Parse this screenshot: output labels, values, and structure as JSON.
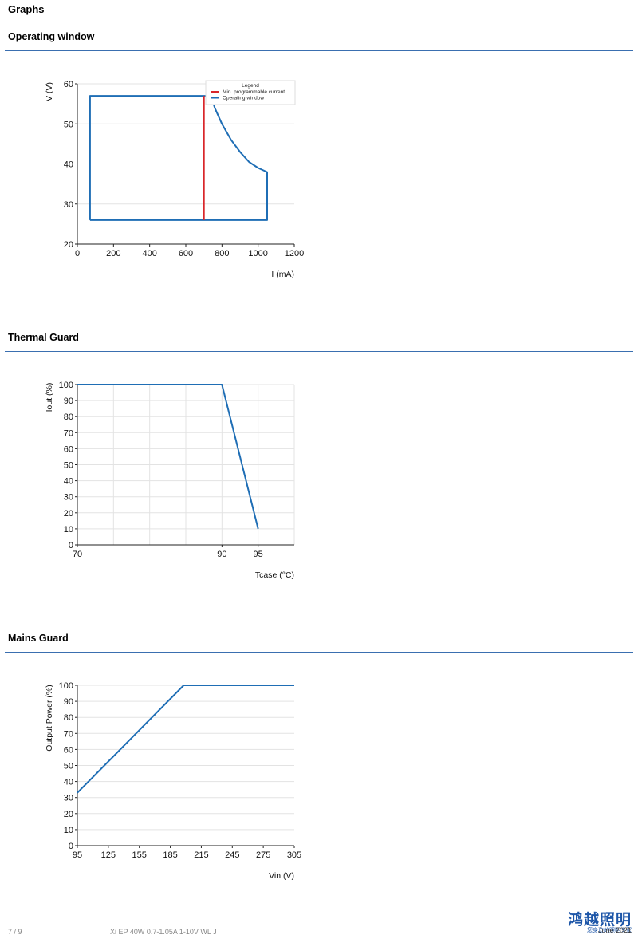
{
  "page": {
    "heading": "Graphs",
    "footer": {
      "page_number": "7 / 9",
      "product": "Xi EP 40W 0.7-1.05A 1-10V WL J",
      "date": "June 2021",
      "brand_name": "鸿越照明",
      "brand_sub": "您身边的照明专家"
    }
  },
  "colors": {
    "accent": "#3a6fb0",
    "series_blue": "#1f6eb5",
    "series_red": "#d9262a",
    "grid": "#e3e3e3"
  },
  "chart_data": [
    {
      "type": "line",
      "section_title": "Operating window",
      "xlabel": "I (mA)",
      "ylabel": "V (V)",
      "xlim": [
        0,
        1200
      ],
      "ylim": [
        20,
        60
      ],
      "xticks": [
        0,
        200,
        400,
        600,
        800,
        1000,
        1200
      ],
      "yticks": [
        20,
        30,
        40,
        50,
        60
      ],
      "grid": "horizontal",
      "legend": {
        "title": "Legend",
        "placement": "top-right",
        "entries": [
          "Min. programmable current",
          "Operating window"
        ]
      },
      "series": [
        {
          "name": "Operating window",
          "color": "#1f6eb5",
          "points": [
            [
              70,
              26
            ],
            [
              70,
              57
            ],
            [
              740,
              57
            ],
            [
              760,
              54
            ],
            [
              800,
              50
            ],
            [
              850,
              46
            ],
            [
              900,
              43
            ],
            [
              950,
              40.5
            ],
            [
              1000,
              39
            ],
            [
              1050,
              38
            ],
            [
              1050,
              26
            ],
            [
              70,
              26
            ]
          ]
        },
        {
          "name": "Min. programmable current",
          "color": "#d9262a",
          "points": [
            [
              700,
              26
            ],
            [
              700,
              57
            ]
          ]
        }
      ]
    },
    {
      "type": "line",
      "section_title": "Thermal Guard",
      "xlabel": "Tcase (°C)",
      "ylabel": "Iout (%)",
      "xlim": [
        70,
        100
      ],
      "ylim": [
        0,
        100
      ],
      "xticks": [
        70,
        90,
        95
      ],
      "xgrid": [
        70,
        75,
        80,
        85,
        90,
        95,
        100
      ],
      "yticks": [
        0,
        10,
        20,
        30,
        40,
        50,
        60,
        70,
        80,
        90,
        100
      ],
      "grid": "both",
      "series": [
        {
          "color": "#1f6eb5",
          "points": [
            [
              70,
              100
            ],
            [
              90,
              100
            ],
            [
              95,
              10
            ]
          ]
        }
      ]
    },
    {
      "type": "line",
      "section_title": "Mains Guard",
      "xlabel": "Vin (V)",
      "ylabel": "Output Power (%)",
      "xlim": [
        95,
        305
      ],
      "ylim": [
        0,
        100
      ],
      "xticks": [
        95,
        125,
        155,
        185,
        215,
        245,
        275,
        305
      ],
      "yticks": [
        0,
        10,
        20,
        30,
        40,
        50,
        60,
        70,
        80,
        90,
        100
      ],
      "grid": "horizontal",
      "series": [
        {
          "color": "#1f6eb5",
          "points": [
            [
              95,
              33
            ],
            [
              198,
              100
            ],
            [
              305,
              100
            ]
          ]
        }
      ]
    }
  ]
}
